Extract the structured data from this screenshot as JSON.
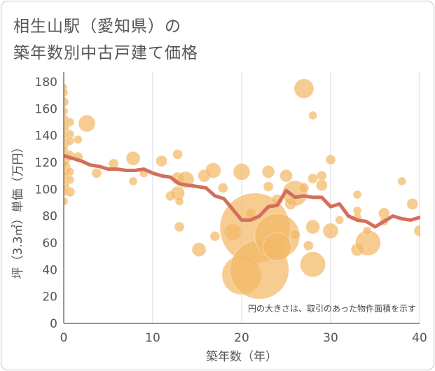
{
  "header": {
    "title_line1": "相生山駅（愛知県）の",
    "title_line2": "築年数別中古戸建て価格"
  },
  "chart_data": {
    "type": "scatter",
    "title": "相生山駅（愛知県）の築年数別中古戸建て価格",
    "xlabel": "築年数（年）",
    "ylabel": "坪（3.3㎡）単価（万円）",
    "xlim": [
      0,
      40
    ],
    "ylim": [
      0,
      185
    ],
    "x_ticks": [
      0,
      10,
      20,
      30,
      40
    ],
    "y_ticks": [
      0,
      20,
      40,
      60,
      80,
      100,
      120,
      140,
      160,
      180
    ],
    "grid": "vertical",
    "note": "円の大きさは、取引のあった物件面積を示す",
    "colors": {
      "bubble": "#f2b866",
      "trend": "#d36f5c",
      "grid": "#d5d9e2",
      "text": "#555555"
    },
    "trend_line": {
      "x": [
        0,
        1,
        2,
        3,
        4,
        5,
        6,
        7,
        8,
        9,
        10,
        11,
        12,
        13,
        14,
        15,
        16,
        17,
        18,
        19,
        20,
        21,
        22,
        23,
        24,
        25,
        26,
        27,
        28,
        29,
        30,
        31,
        32,
        33,
        34,
        35,
        36,
        37,
        38,
        39,
        40
      ],
      "y": [
        125,
        123,
        121,
        118,
        117,
        115,
        115,
        114,
        114,
        115,
        112,
        110,
        109,
        104,
        103,
        102,
        101,
        95,
        93,
        85,
        77,
        77,
        80,
        87,
        88,
        99,
        94,
        95,
        94,
        94,
        87,
        89,
        80,
        77,
        76,
        72,
        76,
        80,
        78,
        77,
        79
      ]
    },
    "bubbles": [
      {
        "x": 0,
        "y": 176,
        "r": 5
      },
      {
        "x": 0,
        "y": 172,
        "r": 6
      },
      {
        "x": 0,
        "y": 165,
        "r": 7
      },
      {
        "x": 0,
        "y": 158,
        "r": 6
      },
      {
        "x": 0,
        "y": 152,
        "r": 7
      },
      {
        "x": 0,
        "y": 146,
        "r": 8
      },
      {
        "x": 0,
        "y": 140,
        "r": 6
      },
      {
        "x": 0,
        "y": 134,
        "r": 8
      },
      {
        "x": 0,
        "y": 128,
        "r": 7
      },
      {
        "x": 0,
        "y": 122,
        "r": 9
      },
      {
        "x": 0,
        "y": 116,
        "r": 10
      },
      {
        "x": 0,
        "y": 110,
        "r": 7
      },
      {
        "x": 0,
        "y": 103,
        "r": 8
      },
      {
        "x": 0,
        "y": 98,
        "r": 6
      },
      {
        "x": 0,
        "y": 91,
        "r": 6
      },
      {
        "x": 0.7,
        "y": 150,
        "r": 6
      },
      {
        "x": 0.7,
        "y": 141,
        "r": 6
      },
      {
        "x": 0.7,
        "y": 136,
        "r": 6
      },
      {
        "x": 0.7,
        "y": 125,
        "r": 7
      },
      {
        "x": 0.7,
        "y": 113,
        "r": 6
      },
      {
        "x": 0.7,
        "y": 107,
        "r": 6
      },
      {
        "x": 0.7,
        "y": 98,
        "r": 7
      },
      {
        "x": 1.6,
        "y": 137,
        "r": 6
      },
      {
        "x": 1.6,
        "y": 124,
        "r": 7
      },
      {
        "x": 2.6,
        "y": 149,
        "r": 12
      },
      {
        "x": 3.7,
        "y": 112,
        "r": 7
      },
      {
        "x": 5.6,
        "y": 119,
        "r": 7
      },
      {
        "x": 7.8,
        "y": 123,
        "r": 10
      },
      {
        "x": 7.8,
        "y": 106,
        "r": 6
      },
      {
        "x": 9,
        "y": 112,
        "r": 6
      },
      {
        "x": 11,
        "y": 121,
        "r": 8
      },
      {
        "x": 12,
        "y": 95,
        "r": 7
      },
      {
        "x": 12.8,
        "y": 126,
        "r": 7
      },
      {
        "x": 12.8,
        "y": 108,
        "r": 9
      },
      {
        "x": 12.8,
        "y": 97,
        "r": 10
      },
      {
        "x": 13,
        "y": 91,
        "r": 6
      },
      {
        "x": 13,
        "y": 72,
        "r": 7
      },
      {
        "x": 13.7,
        "y": 107,
        "r": 12
      },
      {
        "x": 15.8,
        "y": 110,
        "r": 9
      },
      {
        "x": 15.2,
        "y": 55,
        "r": 10
      },
      {
        "x": 16.8,
        "y": 114,
        "r": 11
      },
      {
        "x": 17,
        "y": 65,
        "r": 7
      },
      {
        "x": 17.9,
        "y": 101,
        "r": 7
      },
      {
        "x": 20,
        "y": 113,
        "r": 12
      },
      {
        "x": 19,
        "y": 68,
        "r": 12
      },
      {
        "x": 21,
        "y": 82,
        "r": 7
      },
      {
        "x": 21.5,
        "y": 71,
        "r": 50
      },
      {
        "x": 20,
        "y": 36,
        "r": 28
      },
      {
        "x": 22,
        "y": 40,
        "r": 42
      },
      {
        "x": 22,
        "y": 61,
        "r": 6
      },
      {
        "x": 23,
        "y": 113,
        "r": 9
      },
      {
        "x": 23,
        "y": 102,
        "r": 7
      },
      {
        "x": 24,
        "y": 65,
        "r": 32
      },
      {
        "x": 24,
        "y": 57,
        "r": 20
      },
      {
        "x": 24,
        "y": 92,
        "r": 8
      },
      {
        "x": 25,
        "y": 110,
        "r": 9
      },
      {
        "x": 25.5,
        "y": 89,
        "r": 8
      },
      {
        "x": 26,
        "y": 97,
        "r": 18
      },
      {
        "x": 26,
        "y": 66,
        "r": 7
      },
      {
        "x": 27,
        "y": 175,
        "r": 14
      },
      {
        "x": 27,
        "y": 101,
        "r": 7
      },
      {
        "x": 27.5,
        "y": 58,
        "r": 7
      },
      {
        "x": 28,
        "y": 155,
        "r": 6
      },
      {
        "x": 28,
        "y": 108,
        "r": 7
      },
      {
        "x": 28,
        "y": 72,
        "r": 10
      },
      {
        "x": 28,
        "y": 44,
        "r": 18
      },
      {
        "x": 29,
        "y": 110,
        "r": 7
      },
      {
        "x": 29,
        "y": 103,
        "r": 8
      },
      {
        "x": 30,
        "y": 122,
        "r": 7
      },
      {
        "x": 30,
        "y": 69,
        "r": 11
      },
      {
        "x": 31,
        "y": 77,
        "r": 6
      },
      {
        "x": 33,
        "y": 96,
        "r": 6
      },
      {
        "x": 33,
        "y": 84,
        "r": 6
      },
      {
        "x": 33,
        "y": 79,
        "r": 6
      },
      {
        "x": 33,
        "y": 55,
        "r": 9
      },
      {
        "x": 34.2,
        "y": 60,
        "r": 18
      },
      {
        "x": 34.1,
        "y": 69,
        "r": 6
      },
      {
        "x": 36,
        "y": 82,
        "r": 8
      },
      {
        "x": 36,
        "y": 76,
        "r": 6
      },
      {
        "x": 38,
        "y": 106,
        "r": 6
      },
      {
        "x": 39.2,
        "y": 89,
        "r": 8
      },
      {
        "x": 40,
        "y": 69,
        "r": 8
      }
    ]
  }
}
